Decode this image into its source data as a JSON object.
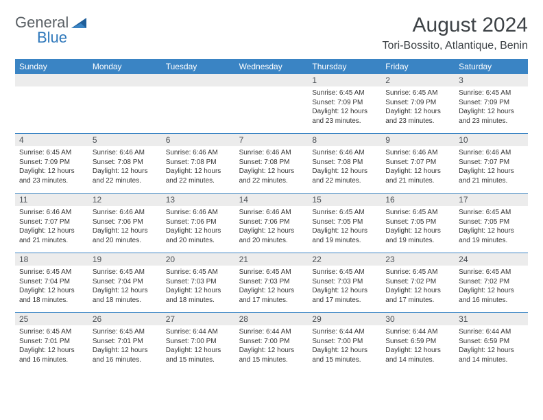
{
  "brand": {
    "line1": "General",
    "line2": "Blue"
  },
  "title": "August 2024",
  "location": "Tori-Bossito, Atlantique, Benin",
  "dayNames": [
    "Sunday",
    "Monday",
    "Tuesday",
    "Wednesday",
    "Thursday",
    "Friday",
    "Saturday"
  ],
  "colors": {
    "header_bg": "#3a84c4",
    "divider": "#3a84c4",
    "daynum_bg": "#ececec",
    "text": "#333333",
    "title_text": "#3d4246"
  },
  "calendar_type": "month-grid",
  "weeks": [
    [
      {
        "day": "",
        "sunrise": "",
        "sunset": "",
        "daylight": ""
      },
      {
        "day": "",
        "sunrise": "",
        "sunset": "",
        "daylight": ""
      },
      {
        "day": "",
        "sunrise": "",
        "sunset": "",
        "daylight": ""
      },
      {
        "day": "",
        "sunrise": "",
        "sunset": "",
        "daylight": ""
      },
      {
        "day": "1",
        "sunrise": "Sunrise: 6:45 AM",
        "sunset": "Sunset: 7:09 PM",
        "daylight": "Daylight: 12 hours and 23 minutes."
      },
      {
        "day": "2",
        "sunrise": "Sunrise: 6:45 AM",
        "sunset": "Sunset: 7:09 PM",
        "daylight": "Daylight: 12 hours and 23 minutes."
      },
      {
        "day": "3",
        "sunrise": "Sunrise: 6:45 AM",
        "sunset": "Sunset: 7:09 PM",
        "daylight": "Daylight: 12 hours and 23 minutes."
      }
    ],
    [
      {
        "day": "4",
        "sunrise": "Sunrise: 6:45 AM",
        "sunset": "Sunset: 7:09 PM",
        "daylight": "Daylight: 12 hours and 23 minutes."
      },
      {
        "day": "5",
        "sunrise": "Sunrise: 6:46 AM",
        "sunset": "Sunset: 7:08 PM",
        "daylight": "Daylight: 12 hours and 22 minutes."
      },
      {
        "day": "6",
        "sunrise": "Sunrise: 6:46 AM",
        "sunset": "Sunset: 7:08 PM",
        "daylight": "Daylight: 12 hours and 22 minutes."
      },
      {
        "day": "7",
        "sunrise": "Sunrise: 6:46 AM",
        "sunset": "Sunset: 7:08 PM",
        "daylight": "Daylight: 12 hours and 22 minutes."
      },
      {
        "day": "8",
        "sunrise": "Sunrise: 6:46 AM",
        "sunset": "Sunset: 7:08 PM",
        "daylight": "Daylight: 12 hours and 22 minutes."
      },
      {
        "day": "9",
        "sunrise": "Sunrise: 6:46 AM",
        "sunset": "Sunset: 7:07 PM",
        "daylight": "Daylight: 12 hours and 21 minutes."
      },
      {
        "day": "10",
        "sunrise": "Sunrise: 6:46 AM",
        "sunset": "Sunset: 7:07 PM",
        "daylight": "Daylight: 12 hours and 21 minutes."
      }
    ],
    [
      {
        "day": "11",
        "sunrise": "Sunrise: 6:46 AM",
        "sunset": "Sunset: 7:07 PM",
        "daylight": "Daylight: 12 hours and 21 minutes."
      },
      {
        "day": "12",
        "sunrise": "Sunrise: 6:46 AM",
        "sunset": "Sunset: 7:06 PM",
        "daylight": "Daylight: 12 hours and 20 minutes."
      },
      {
        "day": "13",
        "sunrise": "Sunrise: 6:46 AM",
        "sunset": "Sunset: 7:06 PM",
        "daylight": "Daylight: 12 hours and 20 minutes."
      },
      {
        "day": "14",
        "sunrise": "Sunrise: 6:46 AM",
        "sunset": "Sunset: 7:06 PM",
        "daylight": "Daylight: 12 hours and 20 minutes."
      },
      {
        "day": "15",
        "sunrise": "Sunrise: 6:45 AM",
        "sunset": "Sunset: 7:05 PM",
        "daylight": "Daylight: 12 hours and 19 minutes."
      },
      {
        "day": "16",
        "sunrise": "Sunrise: 6:45 AM",
        "sunset": "Sunset: 7:05 PM",
        "daylight": "Daylight: 12 hours and 19 minutes."
      },
      {
        "day": "17",
        "sunrise": "Sunrise: 6:45 AM",
        "sunset": "Sunset: 7:05 PM",
        "daylight": "Daylight: 12 hours and 19 minutes."
      }
    ],
    [
      {
        "day": "18",
        "sunrise": "Sunrise: 6:45 AM",
        "sunset": "Sunset: 7:04 PM",
        "daylight": "Daylight: 12 hours and 18 minutes."
      },
      {
        "day": "19",
        "sunrise": "Sunrise: 6:45 AM",
        "sunset": "Sunset: 7:04 PM",
        "daylight": "Daylight: 12 hours and 18 minutes."
      },
      {
        "day": "20",
        "sunrise": "Sunrise: 6:45 AM",
        "sunset": "Sunset: 7:03 PM",
        "daylight": "Daylight: 12 hours and 18 minutes."
      },
      {
        "day": "21",
        "sunrise": "Sunrise: 6:45 AM",
        "sunset": "Sunset: 7:03 PM",
        "daylight": "Daylight: 12 hours and 17 minutes."
      },
      {
        "day": "22",
        "sunrise": "Sunrise: 6:45 AM",
        "sunset": "Sunset: 7:03 PM",
        "daylight": "Daylight: 12 hours and 17 minutes."
      },
      {
        "day": "23",
        "sunrise": "Sunrise: 6:45 AM",
        "sunset": "Sunset: 7:02 PM",
        "daylight": "Daylight: 12 hours and 17 minutes."
      },
      {
        "day": "24",
        "sunrise": "Sunrise: 6:45 AM",
        "sunset": "Sunset: 7:02 PM",
        "daylight": "Daylight: 12 hours and 16 minutes."
      }
    ],
    [
      {
        "day": "25",
        "sunrise": "Sunrise: 6:45 AM",
        "sunset": "Sunset: 7:01 PM",
        "daylight": "Daylight: 12 hours and 16 minutes."
      },
      {
        "day": "26",
        "sunrise": "Sunrise: 6:45 AM",
        "sunset": "Sunset: 7:01 PM",
        "daylight": "Daylight: 12 hours and 16 minutes."
      },
      {
        "day": "27",
        "sunrise": "Sunrise: 6:44 AM",
        "sunset": "Sunset: 7:00 PM",
        "daylight": "Daylight: 12 hours and 15 minutes."
      },
      {
        "day": "28",
        "sunrise": "Sunrise: 6:44 AM",
        "sunset": "Sunset: 7:00 PM",
        "daylight": "Daylight: 12 hours and 15 minutes."
      },
      {
        "day": "29",
        "sunrise": "Sunrise: 6:44 AM",
        "sunset": "Sunset: 7:00 PM",
        "daylight": "Daylight: 12 hours and 15 minutes."
      },
      {
        "day": "30",
        "sunrise": "Sunrise: 6:44 AM",
        "sunset": "Sunset: 6:59 PM",
        "daylight": "Daylight: 12 hours and 14 minutes."
      },
      {
        "day": "31",
        "sunrise": "Sunrise: 6:44 AM",
        "sunset": "Sunset: 6:59 PM",
        "daylight": "Daylight: 12 hours and 14 minutes."
      }
    ]
  ]
}
